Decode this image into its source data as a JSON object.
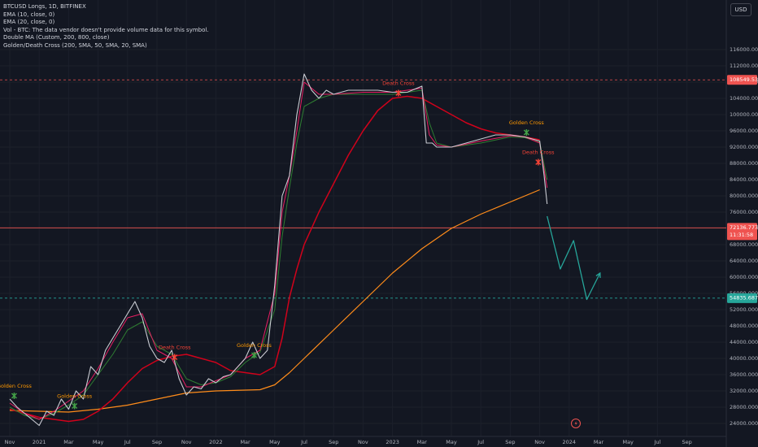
{
  "legend": {
    "title": "BTCUSD Longs, 1D, BITFINEX",
    "lines": [
      "EMA (10, close, 0)",
      "EMA (20, close, 0)",
      "Vol - BTC: The data vendor doesn't provide volume data for this symbol.",
      "Double MA (Custom, 200, 800, close)",
      "Golden/Death Cross (200, SMA, 50, SMA, 20, SMA)"
    ]
  },
  "currency": "USD",
  "price_badges": {
    "top": "108549.5311",
    "current": "72136.7774",
    "countdown": "11:31:58",
    "bottom": "54835.6879"
  },
  "colors": {
    "background": "#131722",
    "price": "#c9cbd2",
    "ema10": "#e91e63",
    "ema20": "#2e7d32",
    "ma200": "#d0021b",
    "ma800": "#ff8c1a",
    "projection": "#26a69a",
    "top_line": "#ef5350",
    "current_line": "#ef5350",
    "bottom_line": "#26a69a"
  },
  "chart_data": {
    "type": "line",
    "y_ticks": [
      24000,
      28000,
      32000,
      36000,
      40000,
      44000,
      48000,
      52000,
      56000,
      60000,
      64000,
      68000,
      72000,
      76000,
      80000,
      84000,
      88000,
      92000,
      96000,
      100000,
      104000,
      108000,
      112000,
      116000
    ],
    "y_tick_labels": [
      "24000.0000",
      "28000.0000",
      "32000.0000",
      "36000.0000",
      "40000.0000",
      "44000.0000",
      "48000.0000",
      "52000.0000",
      "56000.0000",
      "60000.0000",
      "64000.0000",
      "68000.0000",
      "72000.0000",
      "76000.0000",
      "80000.0000",
      "84000.0000",
      "88000.0000",
      "92000.0000",
      "96000.0000",
      "100000.0000",
      "104000.0000",
      "108000.0000",
      "112000.0000",
      "116000.0000"
    ],
    "x_labels": [
      {
        "t": 0,
        "label": "Nov"
      },
      {
        "t": 2,
        "label": "2021"
      },
      {
        "t": 4,
        "label": "Mar"
      },
      {
        "t": 6,
        "label": "May"
      },
      {
        "t": 8,
        "label": "Jul"
      },
      {
        "t": 10,
        "label": "Sep"
      },
      {
        "t": 12,
        "label": "Nov"
      },
      {
        "t": 14,
        "label": "2022"
      },
      {
        "t": 16,
        "label": "Mar"
      },
      {
        "t": 18,
        "label": "May"
      },
      {
        "t": 20,
        "label": "Jul"
      },
      {
        "t": 22,
        "label": "Sep"
      },
      {
        "t": 24,
        "label": "Nov"
      },
      {
        "t": 26,
        "label": "2023"
      },
      {
        "t": 28,
        "label": "Mar"
      },
      {
        "t": 30,
        "label": "May"
      },
      {
        "t": 32,
        "label": "Jul"
      },
      {
        "t": 34,
        "label": "Sep"
      },
      {
        "t": 36,
        "label": "Nov"
      },
      {
        "t": 38,
        "label": "2024"
      },
      {
        "t": 40,
        "label": "Mar"
      },
      {
        "t": 42,
        "label": "May"
      },
      {
        "t": 44,
        "label": "Jul"
      },
      {
        "t": 46,
        "label": "Sep"
      }
    ],
    "series": [
      {
        "key": "price",
        "points": [
          [
            0,
            30000
          ],
          [
            0.5,
            28000
          ],
          [
            1,
            26500
          ],
          [
            1.5,
            25000
          ],
          [
            2,
            23500
          ],
          [
            2.5,
            27000
          ],
          [
            3,
            26000
          ],
          [
            3.5,
            30000
          ],
          [
            4,
            27500
          ],
          [
            4.5,
            32000
          ],
          [
            5,
            30000
          ],
          [
            5.5,
            38000
          ],
          [
            6,
            36000
          ],
          [
            6.5,
            42000
          ],
          [
            7,
            45000
          ],
          [
            7.5,
            48000
          ],
          [
            8,
            51000
          ],
          [
            8.5,
            54000
          ],
          [
            9,
            50000
          ],
          [
            9.5,
            43000
          ],
          [
            10,
            40000
          ],
          [
            10.5,
            39000
          ],
          [
            11,
            42000
          ],
          [
            11.5,
            35000
          ],
          [
            12,
            31000
          ],
          [
            12.5,
            33000
          ],
          [
            13,
            32500
          ],
          [
            13.5,
            35000
          ],
          [
            14,
            34000
          ],
          [
            14.5,
            35500
          ],
          [
            15,
            36000
          ],
          [
            15.5,
            38000
          ],
          [
            16,
            40000
          ],
          [
            16.5,
            44000
          ],
          [
            17,
            40000
          ],
          [
            17.5,
            42000
          ],
          [
            18,
            58000
          ],
          [
            18.5,
            80000
          ],
          [
            19,
            85000
          ],
          [
            19.5,
            100000
          ],
          [
            20,
            110000
          ],
          [
            20.5,
            106000
          ],
          [
            21,
            104000
          ],
          [
            21.5,
            106000
          ],
          [
            22,
            105000
          ],
          [
            23,
            106000
          ],
          [
            24,
            106000
          ],
          [
            25,
            106000
          ],
          [
            26,
            105500
          ],
          [
            27,
            105500
          ],
          [
            28,
            107000
          ],
          [
            28.3,
            93000
          ],
          [
            28.7,
            93000
          ],
          [
            29,
            92000
          ],
          [
            30,
            92000
          ],
          [
            31,
            93000
          ],
          [
            32,
            94000
          ],
          [
            33,
            95000
          ],
          [
            34,
            95000
          ],
          [
            35,
            94500
          ],
          [
            36,
            93500
          ],
          [
            36.3,
            85000
          ],
          [
            36.5,
            78000
          ]
        ]
      },
      {
        "key": "ema10",
        "points": [
          [
            0,
            29000
          ],
          [
            1,
            26500
          ],
          [
            2,
            25000
          ],
          [
            3,
            27000
          ],
          [
            4,
            29500
          ],
          [
            5,
            32000
          ],
          [
            6,
            37500
          ],
          [
            7,
            44000
          ],
          [
            8,
            50000
          ],
          [
            9,
            51000
          ],
          [
            10,
            42000
          ],
          [
            11,
            40000
          ],
          [
            12,
            33000
          ],
          [
            13,
            33000
          ],
          [
            14,
            34500
          ],
          [
            15,
            36000
          ],
          [
            16,
            40000
          ],
          [
            17,
            42000
          ],
          [
            18,
            56000
          ],
          [
            18.5,
            76000
          ],
          [
            19,
            85000
          ],
          [
            19.5,
            96000
          ],
          [
            20,
            108000
          ],
          [
            21,
            105000
          ],
          [
            22,
            105000
          ],
          [
            24,
            105500
          ],
          [
            26,
            105500
          ],
          [
            28,
            106500
          ],
          [
            28.5,
            95000
          ],
          [
            29,
            92500
          ],
          [
            30,
            92000
          ],
          [
            32,
            93500
          ],
          [
            34,
            94800
          ],
          [
            35,
            94500
          ],
          [
            36,
            93000
          ],
          [
            36.5,
            82000
          ]
        ]
      },
      {
        "key": "ema20",
        "points": [
          [
            0,
            28000
          ],
          [
            1,
            26000
          ],
          [
            2,
            25000
          ],
          [
            3,
            26500
          ],
          [
            4,
            28500
          ],
          [
            5,
            31000
          ],
          [
            6,
            36000
          ],
          [
            7,
            41000
          ],
          [
            8,
            47000
          ],
          [
            9,
            49000
          ],
          [
            10,
            43000
          ],
          [
            11,
            41000
          ],
          [
            12,
            35000
          ],
          [
            13,
            33500
          ],
          [
            14,
            34000
          ],
          [
            15,
            35500
          ],
          [
            16,
            39000
          ],
          [
            17,
            41500
          ],
          [
            18,
            52000
          ],
          [
            18.5,
            70000
          ],
          [
            19,
            82000
          ],
          [
            19.5,
            93000
          ],
          [
            20,
            102000
          ],
          [
            21,
            104000
          ],
          [
            22,
            105000
          ],
          [
            24,
            105000
          ],
          [
            26,
            105000
          ],
          [
            28,
            106000
          ],
          [
            28.5,
            98000
          ],
          [
            29,
            93000
          ],
          [
            30,
            92000
          ],
          [
            32,
            93000
          ],
          [
            34,
            94500
          ],
          [
            35,
            94300
          ],
          [
            36,
            93200
          ],
          [
            36.5,
            84000
          ]
        ]
      },
      {
        "key": "ma200",
        "points": [
          [
            0,
            27500
          ],
          [
            1,
            26500
          ],
          [
            2,
            25500
          ],
          [
            3,
            25000
          ],
          [
            4,
            24500
          ],
          [
            5,
            25000
          ],
          [
            6,
            27000
          ],
          [
            7,
            30000
          ],
          [
            8,
            34000
          ],
          [
            9,
            37500
          ],
          [
            10,
            39500
          ],
          [
            11,
            40500
          ],
          [
            12,
            41000
          ],
          [
            13,
            40000
          ],
          [
            14,
            39000
          ],
          [
            15,
            37000
          ],
          [
            16,
            36500
          ],
          [
            17,
            36000
          ],
          [
            18,
            38000
          ],
          [
            18.5,
            45000
          ],
          [
            19,
            55000
          ],
          [
            19.5,
            62000
          ],
          [
            20,
            68000
          ],
          [
            21,
            76000
          ],
          [
            22,
            83000
          ],
          [
            23,
            90000
          ],
          [
            24,
            96000
          ],
          [
            25,
            101000
          ],
          [
            26,
            104000
          ],
          [
            27,
            104500
          ],
          [
            28,
            104000
          ],
          [
            29,
            102000
          ],
          [
            30,
            100000
          ],
          [
            31,
            98000
          ],
          [
            32,
            96500
          ],
          [
            33,
            95500
          ],
          [
            34,
            95000
          ],
          [
            35,
            94500
          ],
          [
            36,
            93800
          ]
        ]
      },
      {
        "key": "ma800",
        "points": [
          [
            0,
            27200
          ],
          [
            2,
            27000
          ],
          [
            4,
            26800
          ],
          [
            6,
            27500
          ],
          [
            8,
            28500
          ],
          [
            10,
            30000
          ],
          [
            12,
            31500
          ],
          [
            14,
            32000
          ],
          [
            16,
            32200
          ],
          [
            17,
            32300
          ],
          [
            18,
            33500
          ],
          [
            19,
            36500
          ],
          [
            20,
            40000
          ],
          [
            22,
            47000
          ],
          [
            24,
            54000
          ],
          [
            26,
            61000
          ],
          [
            28,
            67000
          ],
          [
            30,
            72000
          ],
          [
            32,
            75500
          ],
          [
            34,
            78500
          ],
          [
            36,
            81500
          ]
        ]
      },
      {
        "key": "projection",
        "points": [
          [
            36.5,
            75000
          ],
          [
            37.4,
            62000
          ],
          [
            38.3,
            69000
          ],
          [
            39.2,
            54500
          ],
          [
            40.1,
            61000
          ]
        ]
      }
    ],
    "markers": [
      {
        "label": "Golden Cross",
        "t": 0.3,
        "y": 32000,
        "color": "#ff9800",
        "kind": "golden"
      },
      {
        "label": "Golden Cross",
        "t": 4.4,
        "y": 29500,
        "color": "#ff9800",
        "kind": "golden"
      },
      {
        "label": "Death Cross",
        "t": 11.2,
        "y": 41500,
        "color": "#f44336",
        "kind": "death"
      },
      {
        "label": "Golden Cross",
        "t": 16.6,
        "y": 42000,
        "color": "#ff9800",
        "kind": "golden"
      },
      {
        "label": "Death Cross",
        "t": 26.4,
        "y": 106500,
        "color": "#f44336",
        "kind": "death"
      },
      {
        "label": "Golden Cross",
        "t": 35.1,
        "y": 96800,
        "color": "#ff9800",
        "kind": "golden"
      },
      {
        "label": "Death Cross",
        "t": 35.9,
        "y": 89500,
        "color": "#f44336",
        "kind": "death"
      }
    ],
    "h_lines": [
      {
        "y": 108549.5311,
        "style": "dashed",
        "color": "#ef5350"
      },
      {
        "y": 72136.7774,
        "style": "solid",
        "color": "#ef5350"
      },
      {
        "y": 54835.6879,
        "style": "dashed",
        "color": "#26a69a"
      }
    ]
  }
}
